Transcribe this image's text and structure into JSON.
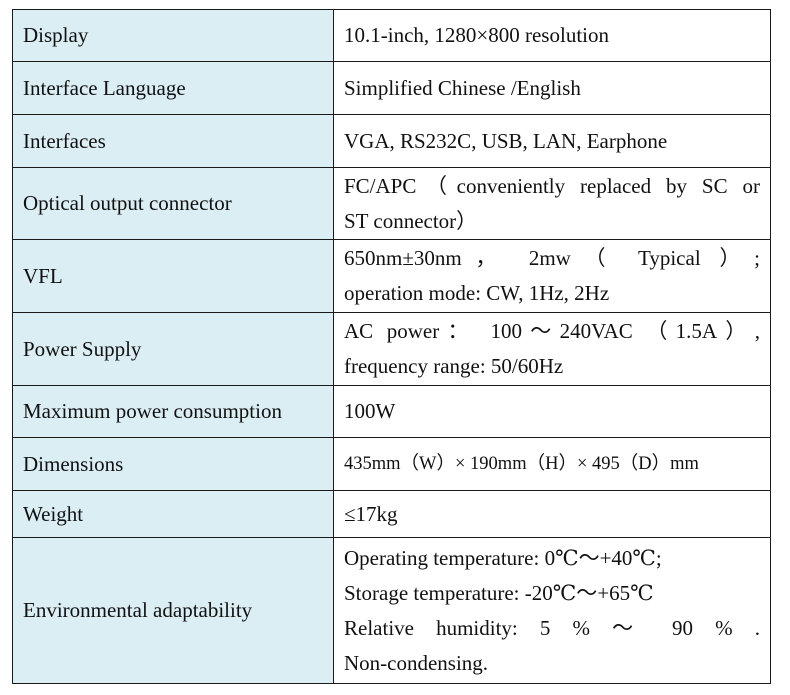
{
  "rows": [
    {
      "label": "Display",
      "lines": [
        "10.1-inch, 1280×800 resolution"
      ]
    },
    {
      "label": "Interface Language",
      "lines": [
        "Simplified Chinese /English"
      ]
    },
    {
      "label": "Interfaces",
      "lines": [
        "VGA, RS232C, USB, LAN, Earphone"
      ]
    },
    {
      "label": "Optical output connector",
      "lines": [
        "FC/APC（conveniently replaced by SC or",
        "ST connector）"
      ]
    },
    {
      "label": "VFL",
      "lines": [
        "650nm±30nm， 2mw（ Typical ）;",
        "operation mode: CW, 1Hz, 2Hz"
      ]
    },
    {
      "label": "Power Supply",
      "lines": [
        "AC power： 100～240VAC （1.5A）,",
        "frequency range: 50/60Hz"
      ]
    },
    {
      "label": "Maximum power consumption",
      "lines": [
        "100W"
      ]
    },
    {
      "label": "Dimensions",
      "lines": [
        "435mm（W）× 190mm（H）× 495（D）mm"
      ]
    },
    {
      "label": "Weight",
      "lines": [
        "≤17kg"
      ]
    },
    {
      "label": "Environmental adaptability",
      "lines": [
        "Operating temperature: 0℃～+40℃;",
        "Storage temperature: -20℃～+65℃",
        "Relative humidity: 5 % ～ 90 % .",
        "Non-condensing."
      ]
    }
  ]
}
